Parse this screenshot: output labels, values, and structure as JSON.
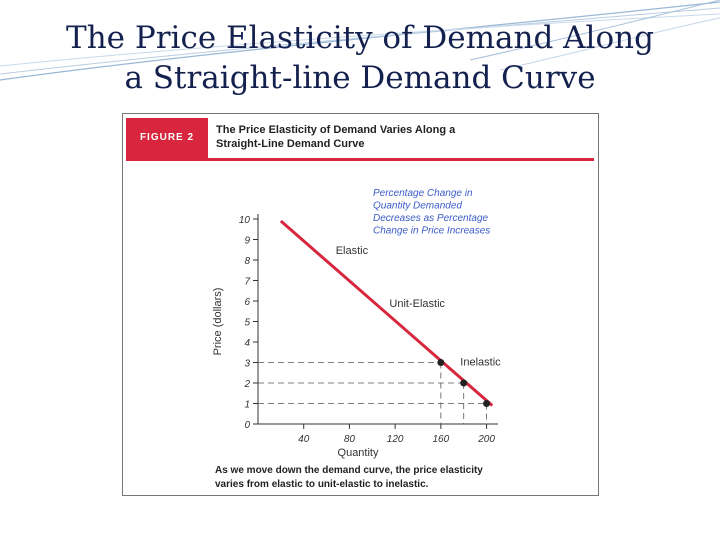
{
  "slide": {
    "title_line1": "The Price Elasticity of Demand Along",
    "title_line2": "a Straight-line Demand Curve"
  },
  "figure": {
    "label": "FIGURE 2",
    "title_line1": "The Price Elasticity of Demand Varies Along a",
    "title_line2": "Straight-Line Demand Curve",
    "caption_line1": "As we move down the demand curve, the price elasticity",
    "caption_line2": "varies from elastic to unit-elastic to inelastic."
  },
  "chart_data": {
    "type": "line",
    "xlabel": "Quantity",
    "ylabel": "Price (dollars)",
    "x_ticks": [
      "40",
      "80",
      "120",
      "160",
      "200"
    ],
    "y_ticks": [
      "0",
      "1",
      "2",
      "3",
      "4",
      "5",
      "6",
      "7",
      "8",
      "9",
      "10"
    ],
    "xlim": [
      0,
      210
    ],
    "ylim": [
      0,
      10
    ],
    "line": {
      "x": [
        20,
        205
      ],
      "y": [
        9.9,
        0.9
      ]
    },
    "points": [
      {
        "x": 160,
        "y": 3
      },
      {
        "x": 180,
        "y": 2
      },
      {
        "x": 200,
        "y": 1
      }
    ],
    "labels": [
      {
        "text": "Elastic",
        "x": 68,
        "y": 8.3
      },
      {
        "text": "Unit-Elastic",
        "x": 115,
        "y": 5.7
      },
      {
        "text": "Inelastic",
        "x": 177,
        "y": 2.85
      }
    ],
    "annotation_lines": [
      "Percentage Change in",
      "Quantity Demanded",
      "Decreases as Percentage",
      "Change in Price Increases"
    ],
    "colors": {
      "line": "#d7263d",
      "annotation": "#3b5cc9",
      "points": "#222222"
    }
  }
}
